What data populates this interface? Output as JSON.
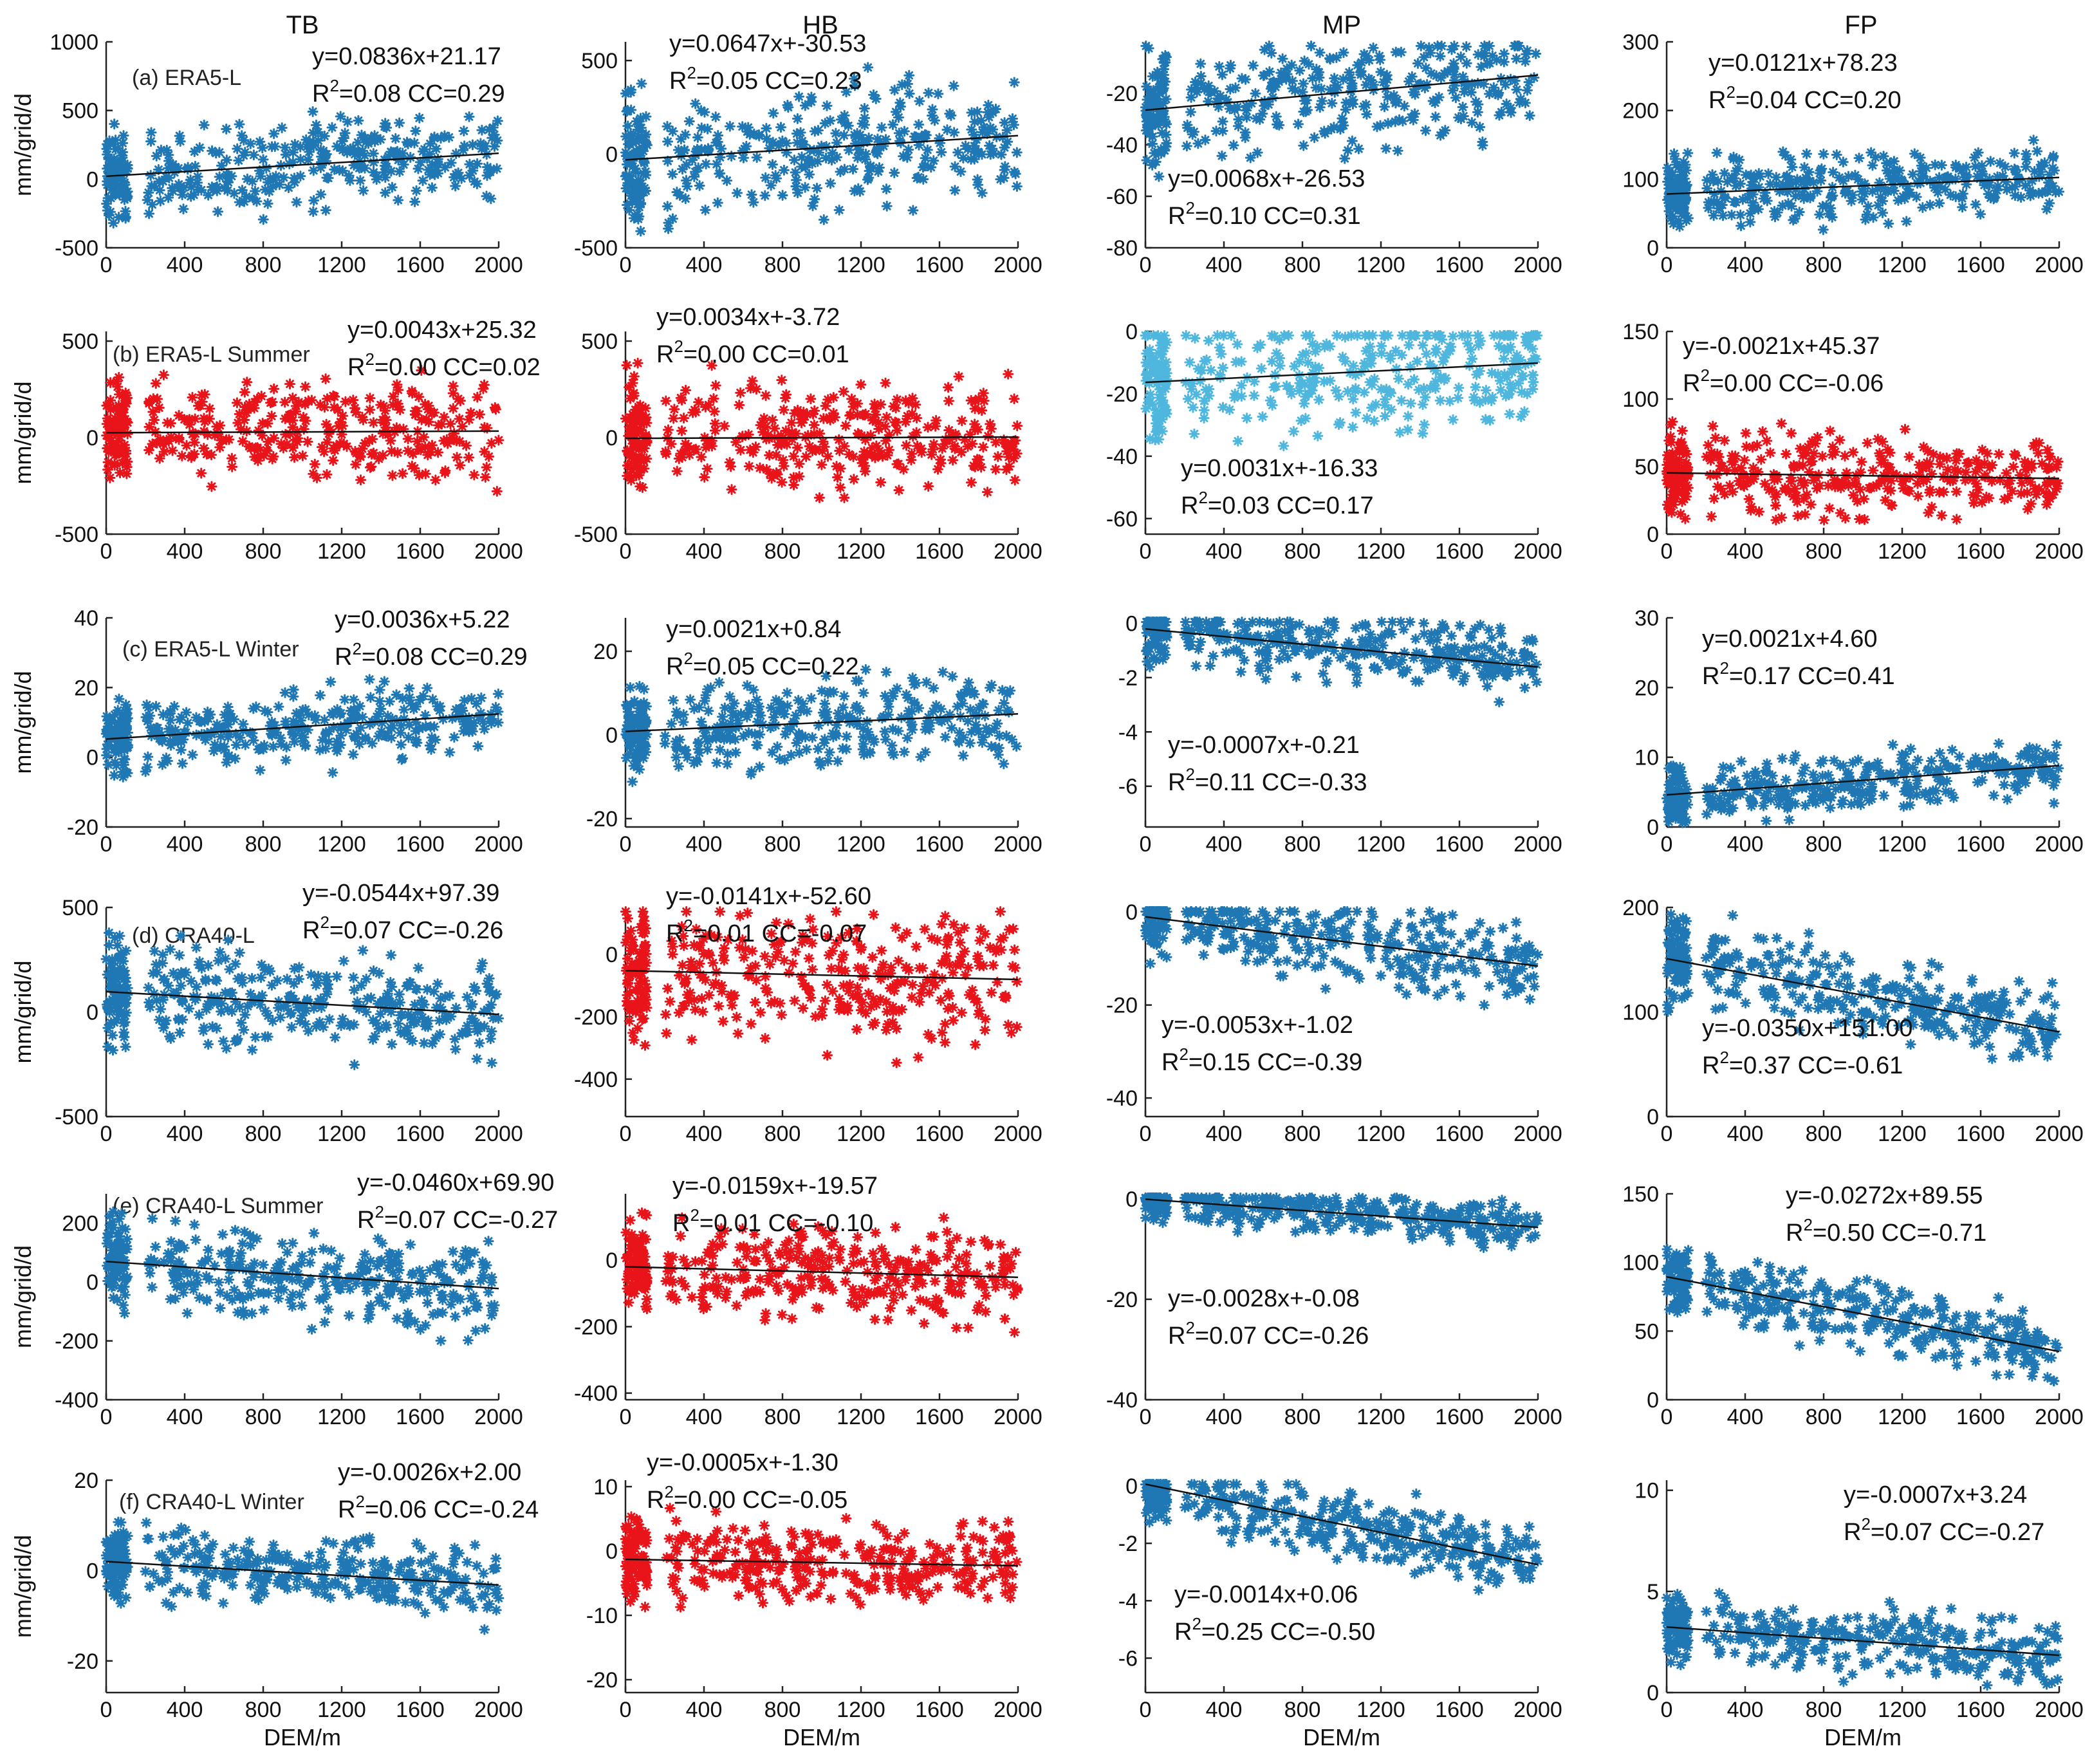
{
  "figure": {
    "column_titles": [
      "TB",
      "HB",
      "MP",
      "FP"
    ],
    "ylabel": "mm/grid/d",
    "xlabel": "DEM/m",
    "row_labels": [
      "(a) ERA5-L",
      "(b) ERA5-L Summer",
      "(c) ERA5-L Winter",
      "(d) CRA40-L",
      "(e) CRA40-L Summer",
      "(f) CRA40-L Winter"
    ]
  },
  "colors": {
    "blue": "#1f77b4",
    "red": "#e8141a",
    "lightblue": "#4fb6de"
  },
  "chart_data": [
    {
      "type": "scatter",
      "row": 0,
      "col": 0,
      "color": "blue",
      "ylim": [
        -500,
        1000
      ],
      "yticks": [
        "1000",
        "500",
        "0",
        "-500"
      ],
      "ytick_values": [
        1000,
        500,
        0,
        -500
      ],
      "fit": {
        "slope": 0.0836,
        "intercept": 21.17
      },
      "equation": "y=0.0836x+21.17",
      "r2": "0.08",
      "cc": "0.29",
      "spread": 150,
      "xlim": [
        0,
        2000
      ],
      "xticks": [
        "0",
        "400",
        "800",
        "1200",
        "1600",
        "2000"
      ],
      "xtick_values": [
        0,
        400,
        800,
        1200,
        1600,
        2000
      ]
    },
    {
      "type": "scatter",
      "row": 0,
      "col": 1,
      "color": "blue",
      "ylim": [
        -500,
        600
      ],
      "yticks": [
        "500",
        "0",
        "-500"
      ],
      "ytick_values": [
        500,
        0,
        -500
      ],
      "fit": {
        "slope": 0.0647,
        "intercept": -30.53
      },
      "equation": "y=0.0647x+-30.53",
      "r2": "0.05",
      "cc": "0.23",
      "spread": 160,
      "xlim": [
        0,
        2000
      ],
      "xticks": [
        "0",
        "400",
        "800",
        "1200",
        "1600",
        "2000"
      ],
      "xtick_values": [
        0,
        400,
        800,
        1200,
        1600,
        2000
      ]
    },
    {
      "type": "scatter",
      "row": 0,
      "col": 2,
      "color": "blue",
      "ylim": [
        -80,
        0
      ],
      "yticks": [
        "-20",
        "-40",
        "-60",
        "-80"
      ],
      "ytick_values": [
        -20,
        -40,
        -60,
        -80
      ],
      "fit": {
        "slope": 0.0068,
        "intercept": -26.53
      },
      "equation": "y=0.0068x+-26.53",
      "r2": "0.10",
      "cc": "0.31",
      "spread": 10,
      "xlim": [
        0,
        2000
      ],
      "xticks": [
        "0",
        "400",
        "800",
        "1200",
        "1600",
        "2000"
      ],
      "xtick_values": [
        0,
        400,
        800,
        1200,
        1600,
        2000
      ]
    },
    {
      "type": "scatter",
      "row": 0,
      "col": 3,
      "color": "blue",
      "ylim": [
        0,
        300
      ],
      "yticks": [
        "300",
        "200",
        "100",
        "0"
      ],
      "ytick_values": [
        300,
        200,
        100,
        0
      ],
      "fit": {
        "slope": 0.0121,
        "intercept": 78.23
      },
      "equation": "y=0.0121x+78.23",
      "r2": "0.04",
      "cc": "0.20",
      "spread": 22,
      "xlim": [
        0,
        2000
      ],
      "xticks": [
        "0",
        "400",
        "800",
        "1200",
        "1600",
        "2000"
      ],
      "xtick_values": [
        0,
        400,
        800,
        1200,
        1600,
        2000
      ]
    },
    {
      "type": "scatter",
      "row": 1,
      "col": 0,
      "color": "red",
      "ylim": [
        -500,
        550
      ],
      "yticks": [
        "500",
        "0",
        "-500"
      ],
      "ytick_values": [
        500,
        0,
        -500
      ],
      "fit": {
        "slope": 0.0043,
        "intercept": 25.32
      },
      "equation": "y=0.0043x+25.32",
      "r2": "0.00",
      "cc": "0.02",
      "spread": 120,
      "xlim": [
        0,
        2000
      ],
      "xticks": [
        "0",
        "400",
        "800",
        "1200",
        "1600",
        "2000"
      ],
      "xtick_values": [
        0,
        400,
        800,
        1200,
        1600,
        2000
      ]
    },
    {
      "type": "scatter",
      "row": 1,
      "col": 1,
      "color": "red",
      "ylim": [
        -500,
        550
      ],
      "yticks": [
        "500",
        "0",
        "-500"
      ],
      "ytick_values": [
        500,
        0,
        -500
      ],
      "fit": {
        "slope": 0.0034,
        "intercept": -3.72
      },
      "equation": "y=0.0034x+-3.72",
      "r2": "0.00",
      "cc": "0.01",
      "spread": 140,
      "xlim": [
        0,
        2000
      ],
      "xticks": [
        "0",
        "400",
        "800",
        "1200",
        "1600",
        "2000"
      ],
      "xtick_values": [
        0,
        400,
        800,
        1200,
        1600,
        2000
      ]
    },
    {
      "type": "scatter",
      "row": 1,
      "col": 2,
      "color": "lightblue",
      "ylim": [
        -65,
        0
      ],
      "yticks": [
        "0",
        "-20",
        "-40",
        "-60"
      ],
      "ytick_values": [
        0,
        -20,
        -40,
        -60
      ],
      "fit": {
        "slope": 0.0031,
        "intercept": -16.33
      },
      "equation": "y=0.0031x+-16.33",
      "r2": "0.03",
      "cc": "0.17",
      "spread": 9,
      "xlim": [
        0,
        2000
      ],
      "xticks": [
        "0",
        "400",
        "800",
        "1200",
        "1600",
        "2000"
      ],
      "xtick_values": [
        0,
        400,
        800,
        1200,
        1600,
        2000
      ]
    },
    {
      "type": "scatter",
      "row": 1,
      "col": 3,
      "color": "red",
      "ylim": [
        0,
        150
      ],
      "yticks": [
        "150",
        "100",
        "50",
        "0"
      ],
      "ytick_values": [
        150,
        100,
        50,
        0
      ],
      "fit": {
        "slope": -0.0021,
        "intercept": 45.37
      },
      "equation": "y=-0.0021x+45.37",
      "r2": "0.00",
      "cc": "-0.06",
      "spread": 15,
      "xlim": [
        0,
        2000
      ],
      "xticks": [
        "0",
        "400",
        "800",
        "1200",
        "1600",
        "2000"
      ],
      "xtick_values": [
        0,
        400,
        800,
        1200,
        1600,
        2000
      ]
    },
    {
      "type": "scatter",
      "row": 2,
      "col": 0,
      "color": "blue",
      "ylim": [
        -20,
        40
      ],
      "yticks": [
        "40",
        "20",
        "0",
        "-20"
      ],
      "ytick_values": [
        40,
        20,
        0,
        -20
      ],
      "fit": {
        "slope": 0.0036,
        "intercept": 5.22
      },
      "equation": "y=0.0036x+5.22",
      "r2": "0.08",
      "cc": "0.29",
      "spread": 5,
      "xlim": [
        0,
        2000
      ],
      "xticks": [
        "0",
        "400",
        "800",
        "1200",
        "1600",
        "2000"
      ],
      "xtick_values": [
        0,
        400,
        800,
        1200,
        1600,
        2000
      ]
    },
    {
      "type": "scatter",
      "row": 2,
      "col": 1,
      "color": "blue",
      "ylim": [
        -22,
        28
      ],
      "yticks": [
        "20",
        "0",
        "-20"
      ],
      "ytick_values": [
        20,
        0,
        -20
      ],
      "fit": {
        "slope": 0.0021,
        "intercept": 0.84
      },
      "equation": "y=0.0021x+0.84",
      "r2": "0.05",
      "cc": "0.22",
      "spread": 5,
      "xlim": [
        0,
        2000
      ],
      "xticks": [
        "0",
        "400",
        "800",
        "1200",
        "1600",
        "2000"
      ],
      "xtick_values": [
        0,
        400,
        800,
        1200,
        1600,
        2000
      ]
    },
    {
      "type": "scatter",
      "row": 2,
      "col": 2,
      "color": "blue",
      "ylim": [
        -7.5,
        0.2
      ],
      "yticks": [
        "0",
        "-2",
        "-4",
        "-6"
      ],
      "ytick_values": [
        0,
        -2,
        -4,
        -6
      ],
      "fit": {
        "slope": -0.0007,
        "intercept": -0.21
      },
      "equation": "y=-0.0007x+-0.21",
      "r2": "0.11",
      "cc": "-0.33",
      "spread": 0.6,
      "xlim": [
        0,
        2000
      ],
      "xticks": [
        "0",
        "400",
        "800",
        "1200",
        "1600",
        "2000"
      ],
      "xtick_values": [
        0,
        400,
        800,
        1200,
        1600,
        2000
      ]
    },
    {
      "type": "scatter",
      "row": 2,
      "col": 3,
      "color": "blue",
      "ylim": [
        0,
        30
      ],
      "yticks": [
        "30",
        "20",
        "10",
        "0"
      ],
      "ytick_values": [
        30,
        20,
        10,
        0
      ],
      "fit": {
        "slope": 0.0021,
        "intercept": 4.6
      },
      "equation": "y=0.0021x+4.60",
      "r2": "0.17",
      "cc": "0.41",
      "spread": 2,
      "xlim": [
        0,
        2000
      ],
      "xticks": [
        "0",
        "400",
        "800",
        "1200",
        "1600",
        "2000"
      ],
      "xtick_values": [
        0,
        400,
        800,
        1200,
        1600,
        2000
      ]
    },
    {
      "type": "scatter",
      "row": 3,
      "col": 0,
      "color": "blue",
      "ylim": [
        -500,
        500
      ],
      "yticks": [
        "500",
        "0",
        "-500"
      ],
      "ytick_values": [
        500,
        0,
        -500
      ],
      "fit": {
        "slope": -0.0544,
        "intercept": 97.39
      },
      "equation": "y=-0.0544x+97.39",
      "r2": "0.07",
      "cc": "-0.26",
      "spread": 110,
      "xlim": [
        0,
        2000
      ],
      "xticks": [
        "0",
        "400",
        "800",
        "1200",
        "1600",
        "2000"
      ],
      "xtick_values": [
        0,
        400,
        800,
        1200,
        1600,
        2000
      ]
    },
    {
      "type": "scatter",
      "row": 3,
      "col": 1,
      "color": "red",
      "ylim": [
        -520,
        150
      ],
      "yticks": [
        "0",
        "-200",
        "-400"
      ],
      "ytick_values": [
        0,
        -200,
        -400
      ],
      "fit": {
        "slope": -0.0141,
        "intercept": -52.6
      },
      "equation": "y=-0.0141x+-52.60",
      "r2": "0.01",
      "cc": "-0.07",
      "spread": 100,
      "xlim": [
        0,
        2000
      ],
      "xticks": [
        "0",
        "400",
        "800",
        "1200",
        "1600",
        "2000"
      ],
      "xtick_values": [
        0,
        400,
        800,
        1200,
        1600,
        2000
      ]
    },
    {
      "type": "scatter",
      "row": 3,
      "col": 2,
      "color": "blue",
      "ylim": [
        -44,
        1
      ],
      "yticks": [
        "0",
        "-20",
        "-40"
      ],
      "ytick_values": [
        0,
        -20,
        -40
      ],
      "fit": {
        "slope": -0.0053,
        "intercept": -1.02
      },
      "equation": "y=-0.0053x+-1.02",
      "r2": "0.15",
      "cc": "-0.39",
      "spread": 4,
      "xlim": [
        0,
        2000
      ],
      "xticks": [
        "0",
        "400",
        "800",
        "1200",
        "1600",
        "2000"
      ],
      "xtick_values": [
        0,
        400,
        800,
        1200,
        1600,
        2000
      ]
    },
    {
      "type": "scatter",
      "row": 3,
      "col": 3,
      "color": "blue",
      "ylim": [
        0,
        200
      ],
      "yticks": [
        "200",
        "100",
        "0"
      ],
      "ytick_values": [
        200,
        100,
        0
      ],
      "fit": {
        "slope": -0.035,
        "intercept": 151.0
      },
      "equation": "y=-0.0350x+151.00",
      "r2": "0.37",
      "cc": "-0.61",
      "spread": 18,
      "xlim": [
        0,
        2000
      ],
      "xticks": [
        "0",
        "400",
        "800",
        "1200",
        "1600",
        "2000"
      ],
      "xtick_values": [
        0,
        400,
        800,
        1200,
        1600,
        2000
      ]
    },
    {
      "type": "scatter",
      "row": 4,
      "col": 0,
      "color": "blue",
      "ylim": [
        -400,
        300
      ],
      "yticks": [
        "200",
        "0",
        "-200",
        "-400"
      ],
      "ytick_values": [
        200,
        0,
        -200,
        -400
      ],
      "fit": {
        "slope": -0.046,
        "intercept": 69.9
      },
      "equation": "y=-0.0460x+69.90",
      "r2": "0.07",
      "cc": "-0.27",
      "spread": 70,
      "xlim": [
        0,
        2000
      ],
      "xticks": [
        "0",
        "400",
        "800",
        "1200",
        "1600",
        "2000"
      ],
      "xtick_values": [
        0,
        400,
        800,
        1200,
        1600,
        2000
      ]
    },
    {
      "type": "scatter",
      "row": 4,
      "col": 1,
      "color": "red",
      "ylim": [
        -420,
        200
      ],
      "yticks": [
        "0",
        "-200",
        "-400"
      ],
      "ytick_values": [
        0,
        -200,
        -400
      ],
      "fit": {
        "slope": -0.0159,
        "intercept": -19.57
      },
      "equation": "y=-0.0159x+-19.57",
      "r2": "0.01",
      "cc": "-0.10",
      "spread": 70,
      "xlim": [
        0,
        2000
      ],
      "xticks": [
        "0",
        "400",
        "800",
        "1200",
        "1600",
        "2000"
      ],
      "xtick_values": [
        0,
        400,
        800,
        1200,
        1600,
        2000
      ]
    },
    {
      "type": "scatter",
      "row": 4,
      "col": 2,
      "color": "blue",
      "ylim": [
        -40,
        1
      ],
      "yticks": [
        "0",
        "-20",
        "-40"
      ],
      "ytick_values": [
        0,
        -20,
        -40
      ],
      "fit": {
        "slope": -0.0028,
        "intercept": -0.08
      },
      "equation": "y=-0.0028x+-0.08",
      "r2": "0.07",
      "cc": "-0.26",
      "spread": 2,
      "xlim": [
        0,
        2000
      ],
      "xticks": [
        "0",
        "400",
        "800",
        "1200",
        "1600",
        "2000"
      ],
      "xtick_values": [
        0,
        400,
        800,
        1200,
        1600,
        2000
      ]
    },
    {
      "type": "scatter",
      "row": 4,
      "col": 3,
      "color": "blue",
      "ylim": [
        0,
        150
      ],
      "yticks": [
        "150",
        "100",
        "50",
        "0"
      ],
      "ytick_values": [
        150,
        100,
        50,
        0
      ],
      "fit": {
        "slope": -0.0272,
        "intercept": 89.55
      },
      "equation": "y=-0.0272x+89.55",
      "r2": "0.50",
      "cc": "-0.71",
      "spread": 12,
      "xlim": [
        0,
        2000
      ],
      "xticks": [
        "0",
        "400",
        "800",
        "1200",
        "1600",
        "2000"
      ],
      "xtick_values": [
        0,
        400,
        800,
        1200,
        1600,
        2000
      ]
    },
    {
      "type": "scatter",
      "row": 5,
      "col": 0,
      "color": "blue",
      "ylim": [
        -27,
        20
      ],
      "yticks": [
        "20",
        "0",
        "-20"
      ],
      "ytick_values": [
        20,
        0,
        -20
      ],
      "fit": {
        "slope": -0.0026,
        "intercept": 2.0
      },
      "equation": "y=-0.0026x+2.00",
      "r2": "0.06",
      "cc": "-0.24",
      "spread": 4,
      "xlim": [
        0,
        2000
      ],
      "xticks": [
        "0",
        "400",
        "800",
        "1200",
        "1600",
        "2000"
      ],
      "xtick_values": [
        0,
        400,
        800,
        1200,
        1600,
        2000
      ]
    },
    {
      "type": "scatter",
      "row": 5,
      "col": 1,
      "color": "red",
      "ylim": [
        -22,
        11
      ],
      "yticks": [
        "10",
        "0",
        "-10",
        "-20"
      ],
      "ytick_values": [
        10,
        0,
        -10,
        -20
      ],
      "fit": {
        "slope": -0.0005,
        "intercept": -1.3
      },
      "equation": "y=-0.0005x+-1.30",
      "r2": "0.00",
      "cc": "-0.05",
      "spread": 3,
      "xlim": [
        0,
        2000
      ],
      "xticks": [
        "0",
        "400",
        "800",
        "1200",
        "1600",
        "2000"
      ],
      "xtick_values": [
        0,
        400,
        800,
        1200,
        1600,
        2000
      ]
    },
    {
      "type": "scatter",
      "row": 5,
      "col": 2,
      "color": "blue",
      "ylim": [
        -7.2,
        0.2
      ],
      "yticks": [
        "0",
        "-2",
        "-4",
        "-6"
      ],
      "ytick_values": [
        0,
        -2,
        -4,
        -6
      ],
      "fit": {
        "slope": -0.0014,
        "intercept": 0.06
      },
      "equation": "y=-0.0014x+0.06",
      "r2": "0.25",
      "cc": "-0.50",
      "spread": 0.6,
      "xlim": [
        0,
        2000
      ],
      "xticks": [
        "0",
        "400",
        "800",
        "1200",
        "1600",
        "2000"
      ],
      "xtick_values": [
        0,
        400,
        800,
        1200,
        1600,
        2000
      ]
    },
    {
      "type": "scatter",
      "row": 5,
      "col": 3,
      "color": "blue",
      "ylim": [
        0,
        10.5
      ],
      "yticks": [
        "10",
        "5",
        "0"
      ],
      "ytick_values": [
        10,
        5,
        0
      ],
      "fit": {
        "slope": -0.0007,
        "intercept": 3.24
      },
      "equation": "y=-0.0007x+3.24",
      "r2": "0.07",
      "cc": "-0.27",
      "spread": 0.8,
      "xlim": [
        0,
        2000
      ],
      "xticks": [
        "0",
        "400",
        "800",
        "1200",
        "1600",
        "2000"
      ],
      "xtick_values": [
        0,
        400,
        800,
        1200,
        1600,
        2000
      ]
    }
  ]
}
